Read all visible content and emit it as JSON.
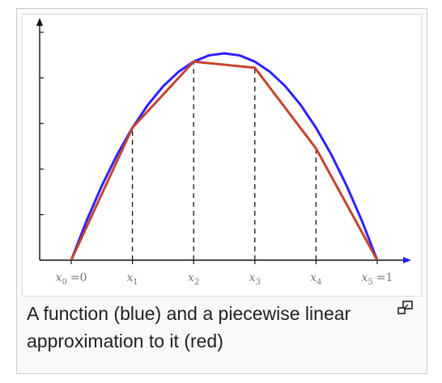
{
  "caption": {
    "text": "A function (blue) and a piecewise linear approximation to it (red)"
  },
  "enlarge_icon": "enlarge-icon",
  "colors": {
    "curve": "#2f1fff",
    "approximation": "#c5442d",
    "axes": "#111111",
    "dashed": "#111111",
    "frame_bg": "#f8f9fa",
    "frame_border": "#c8ccd1"
  },
  "chart_data": {
    "type": "line",
    "title": "",
    "xlabel": "",
    "ylabel": "",
    "xlim": [
      0,
      1
    ],
    "ylim": [
      0,
      1
    ],
    "x_ticks": [
      {
        "symbol": "x",
        "sub": "0",
        "suffix": "=0",
        "value": 0
      },
      {
        "symbol": "x",
        "sub": "1",
        "suffix": "",
        "value": 0.2
      },
      {
        "symbol": "x",
        "sub": "2",
        "suffix": "",
        "value": 0.4
      },
      {
        "symbol": "x",
        "sub": "3",
        "suffix": "",
        "value": 0.6
      },
      {
        "symbol": "x",
        "sub": "4",
        "suffix": "",
        "value": 0.8
      },
      {
        "symbol": "x",
        "sub": "5",
        "suffix": "=1",
        "value": 1
      }
    ],
    "y_tick_count": 5,
    "series": [
      {
        "values": [
          {
            "x": 0,
            "y": 0
          },
          {
            "x": 0.05,
            "y": 0.19
          },
          {
            "x": 0.1,
            "y": 0.36
          },
          {
            "x": 0.15,
            "y": 0.51
          },
          {
            "x": 0.2,
            "y": 0.64
          },
          {
            "x": 0.25,
            "y": 0.75
          },
          {
            "x": 0.3,
            "y": 0.84
          },
          {
            "x": 0.35,
            "y": 0.91
          },
          {
            "x": 0.4,
            "y": 0.96
          },
          {
            "x": 0.45,
            "y": 0.99
          },
          {
            "x": 0.5,
            "y": 1.0
          },
          {
            "x": 0.55,
            "y": 0.99
          },
          {
            "x": 0.6,
            "y": 0.96
          },
          {
            "x": 0.65,
            "y": 0.91
          },
          {
            "x": 0.7,
            "y": 0.84
          },
          {
            "x": 0.75,
            "y": 0.75
          },
          {
            "x": 0.8,
            "y": 0.64
          },
          {
            "x": 0.85,
            "y": 0.51
          },
          {
            "x": 0.9,
            "y": 0.36
          },
          {
            "x": 0.95,
            "y": 0.19
          },
          {
            "x": 1,
            "y": 0
          }
        ]
      },
      {
        "values": [
          {
            "x": 0,
            "y": 0
          },
          {
            "x": 0.2,
            "y": 0.64
          },
          {
            "x": 0.4,
            "y": 0.96
          },
          {
            "x": 0.6,
            "y": 0.93
          },
          {
            "x": 0.8,
            "y": 0.54
          },
          {
            "x": 1,
            "y": 0
          }
        ]
      }
    ],
    "grid": false,
    "legend": "none"
  }
}
